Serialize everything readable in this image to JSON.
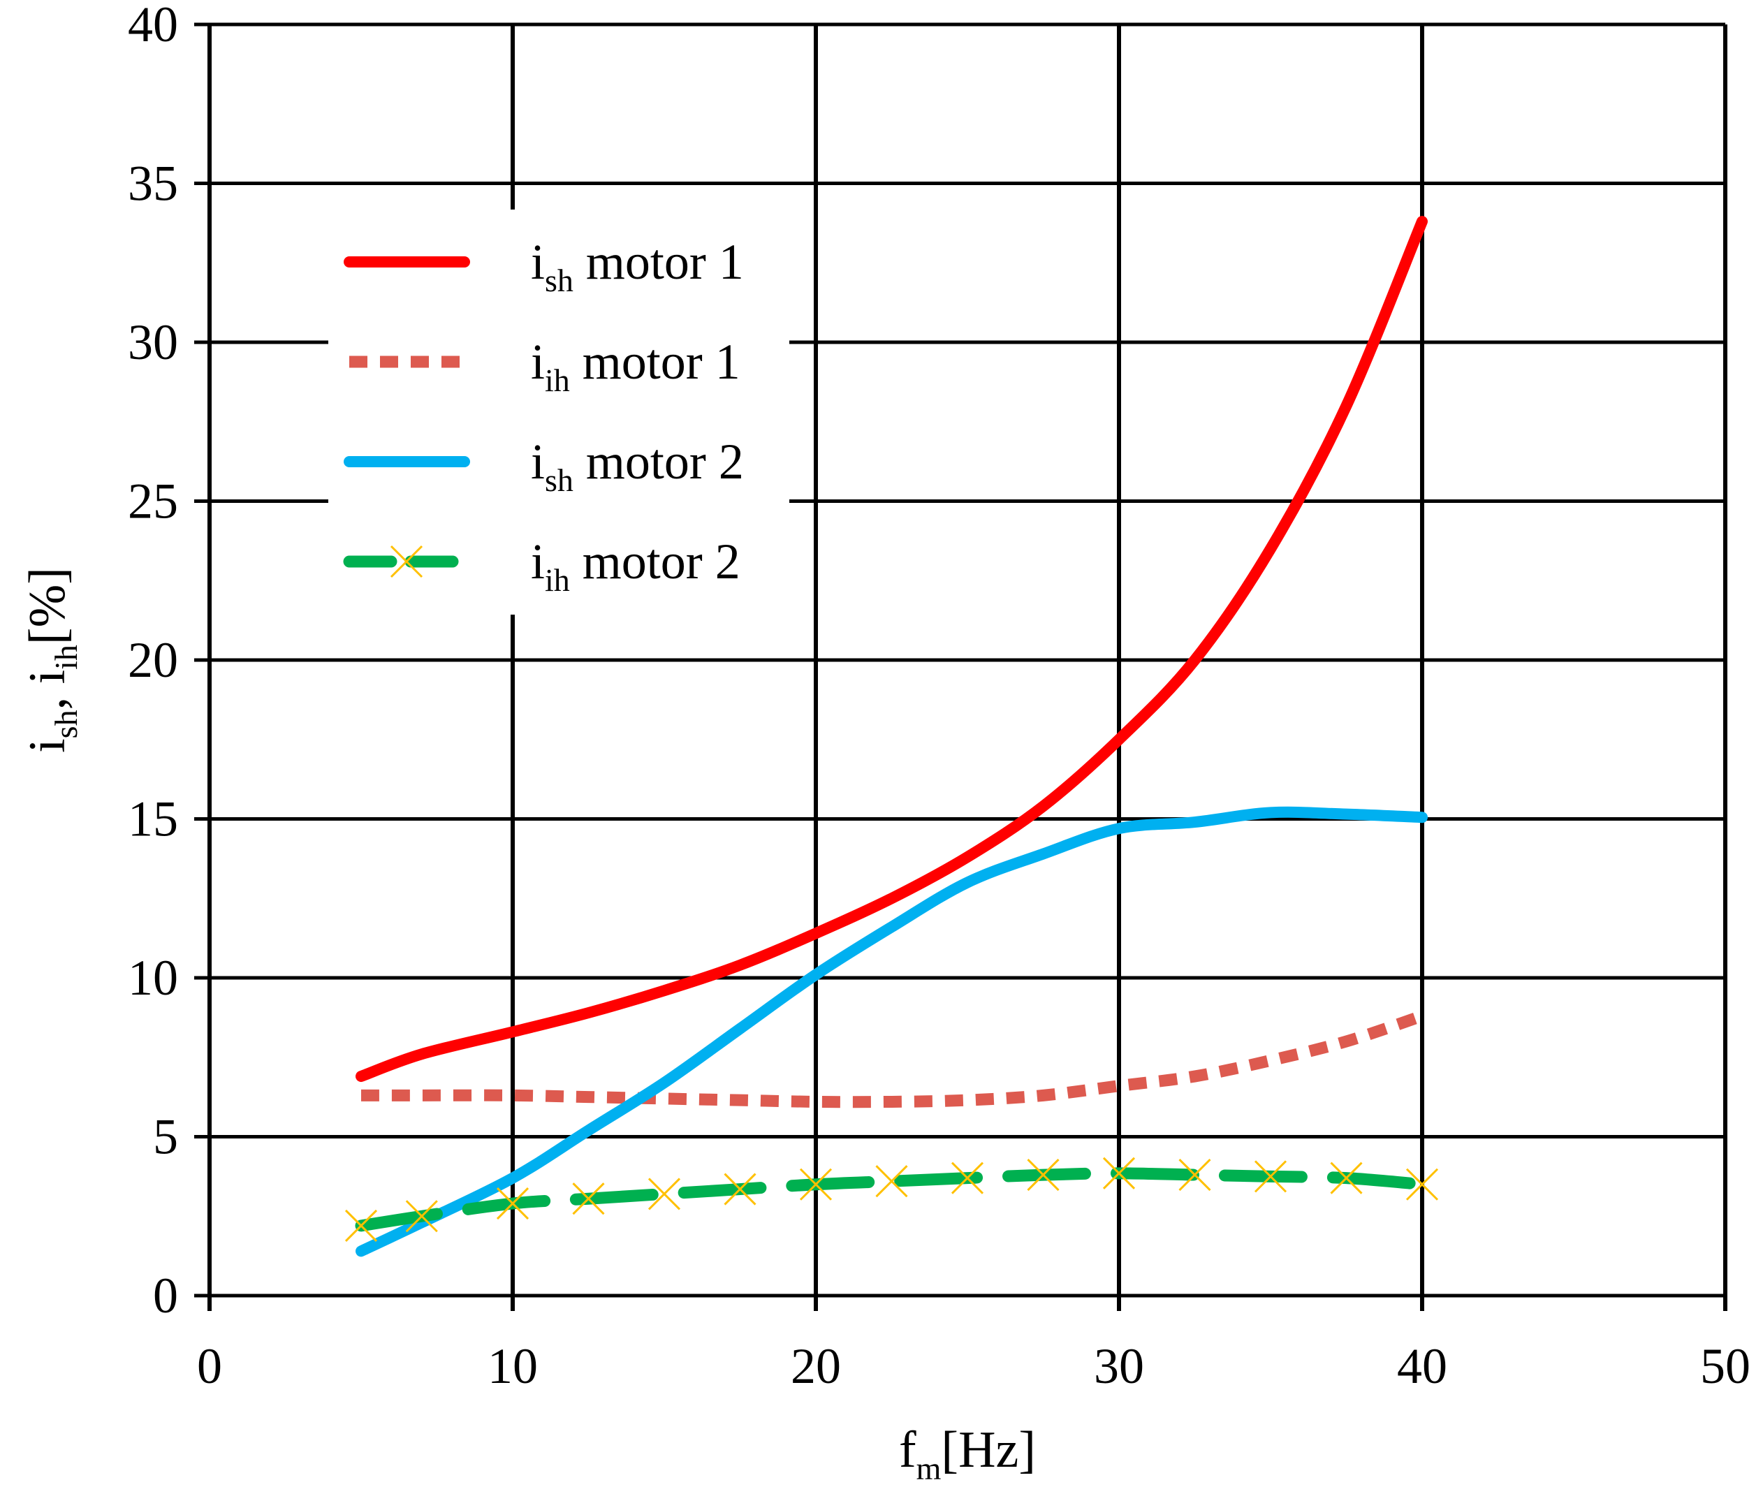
{
  "chart_data": {
    "type": "line",
    "title": "",
    "xlabel": {
      "main": "f",
      "sub": "m",
      "tail": "[Hz]"
    },
    "ylabel": {
      "p1": "i",
      "s1": "sh",
      "p2": ", i",
      "s2": "ih",
      "tail": "[%]"
    },
    "xlim": [
      0,
      50
    ],
    "ylim": [
      0,
      40
    ],
    "xticks": [
      0,
      10,
      20,
      30,
      40,
      50
    ],
    "yticks": [
      0,
      5,
      10,
      15,
      20,
      25,
      30,
      35,
      40
    ],
    "grid": true,
    "legend_position": "top-left",
    "x": [
      5,
      7,
      10,
      12.5,
      15,
      17.5,
      20,
      22.5,
      25,
      27.5,
      30,
      32.5,
      35,
      37.5,
      40
    ],
    "series": [
      {
        "name": "i_sh motor 1",
        "label": {
          "main": "i",
          "sub": "sh",
          "tail": " motor 1"
        },
        "color": "#ff0000",
        "style": "solid",
        "values": [
          6.9,
          7.6,
          8.3,
          8.9,
          9.6,
          10.4,
          11.4,
          12.5,
          13.8,
          15.4,
          17.5,
          20.0,
          23.5,
          28.0,
          33.8
        ]
      },
      {
        "name": "i_ih motor 1",
        "label": {
          "main": "i",
          "sub": "ih",
          "tail": " motor 1"
        },
        "color": "#dd5a4f",
        "style": "dotted",
        "values": [
          6.3,
          6.3,
          6.3,
          6.25,
          6.2,
          6.15,
          6.1,
          6.1,
          6.15,
          6.3,
          6.6,
          6.9,
          7.4,
          8.0,
          8.8
        ]
      },
      {
        "name": "i_sh motor 2",
        "label": {
          "main": "i",
          "sub": "sh",
          "tail": " motor 2"
        },
        "color": "#00b0f0",
        "style": "solid",
        "values": [
          1.4,
          2.3,
          3.7,
          5.2,
          6.7,
          8.4,
          10.1,
          11.6,
          13.0,
          13.9,
          14.7,
          14.9,
          15.2,
          15.15,
          15.05
        ]
      },
      {
        "name": "i_ih motor 2",
        "label": {
          "main": "i",
          "sub": "ih",
          "tail": " motor 2"
        },
        "color": "#00b050",
        "marker_color": "#ffc000",
        "style": "dashed",
        "values": [
          2.2,
          2.5,
          2.9,
          3.05,
          3.2,
          3.35,
          3.5,
          3.6,
          3.7,
          3.8,
          3.85,
          3.8,
          3.75,
          3.7,
          3.5
        ]
      }
    ]
  }
}
